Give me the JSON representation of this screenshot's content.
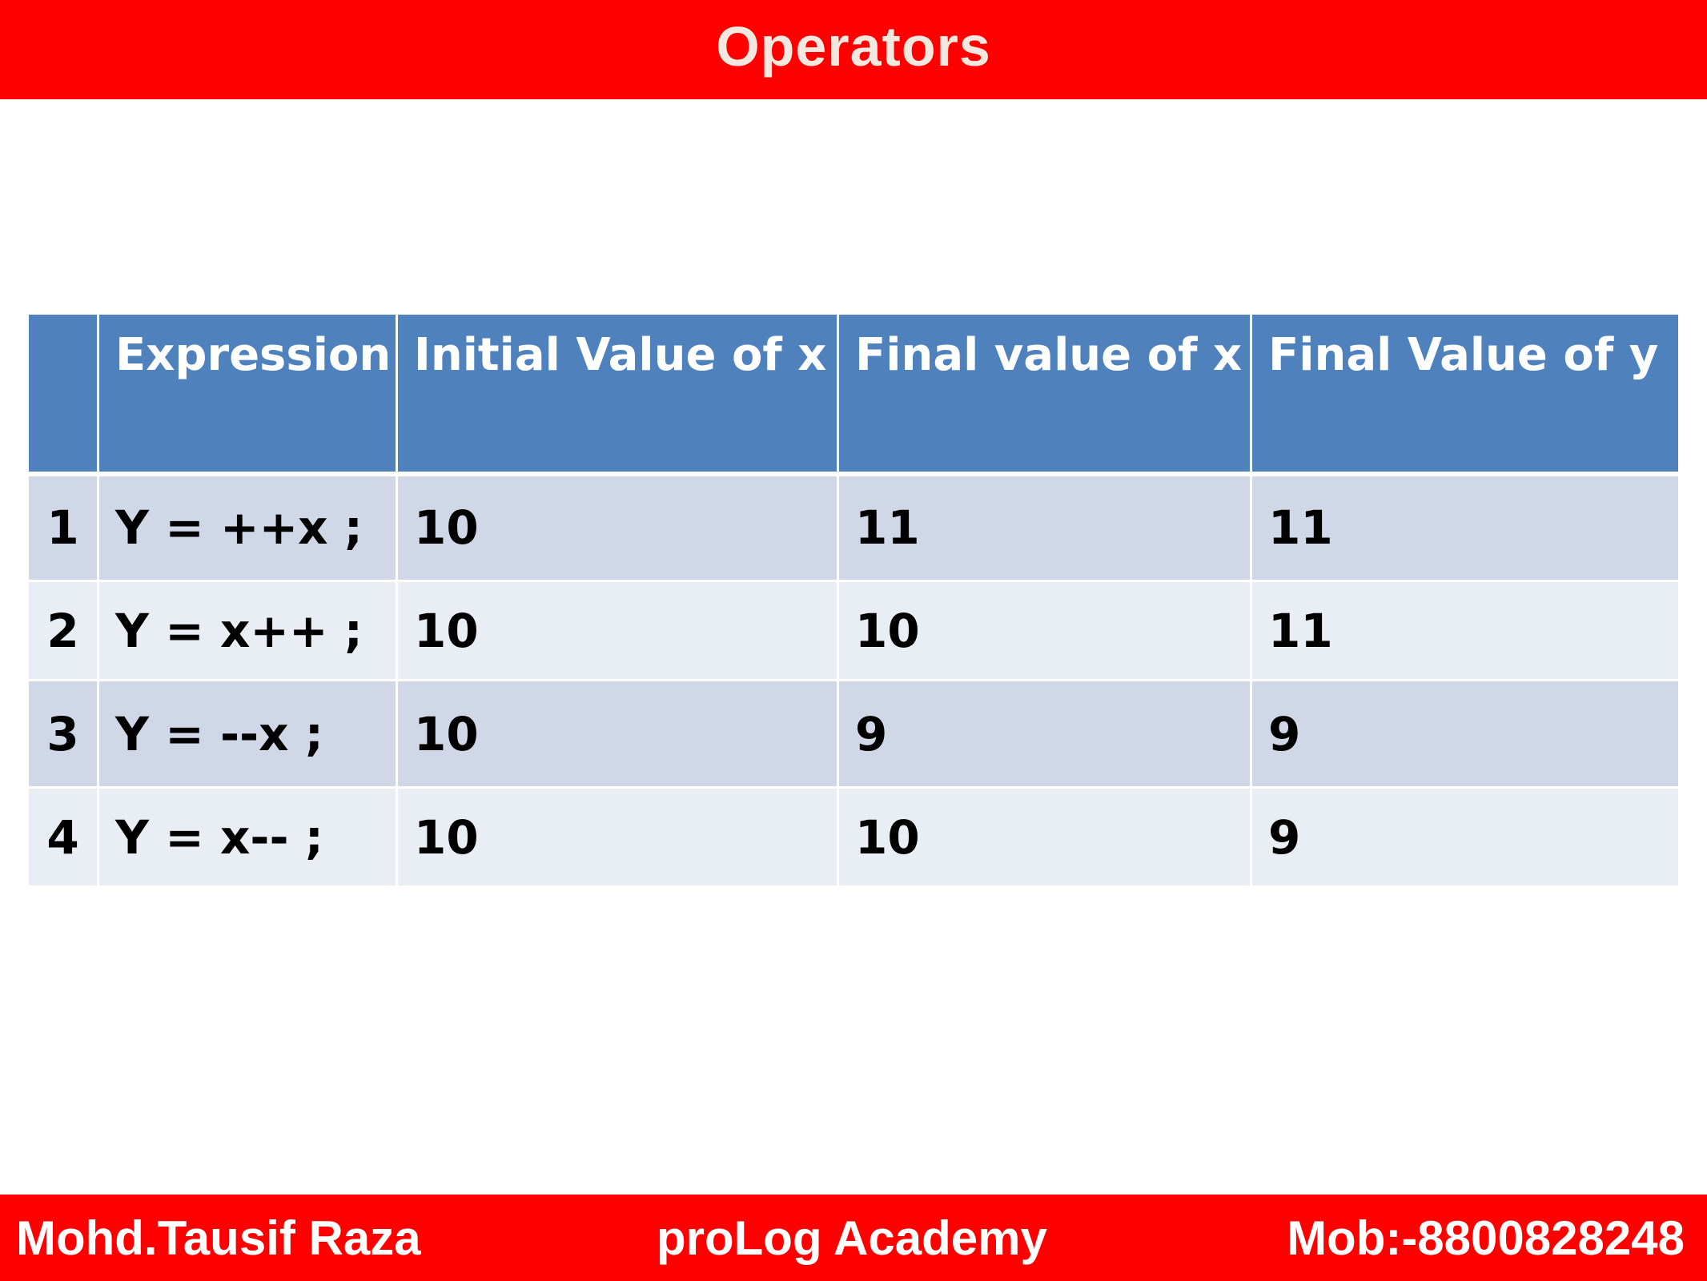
{
  "header": {
    "title": "Operators"
  },
  "table": {
    "columns": [
      "",
      "Expression",
      "Initial Value of x",
      "Final value of x",
      "Final Value of y"
    ],
    "rows": [
      {
        "num": "1",
        "expression": "Y = ++x ;",
        "initial_x": "10",
        "final_x": "11",
        "final_y": "11"
      },
      {
        "num": "2",
        "expression": "Y = x++ ;",
        "initial_x": "10",
        "final_x": "10",
        "final_y": "11"
      },
      {
        "num": "3",
        "expression": "Y = --x ;",
        "initial_x": "10",
        "final_x": "9",
        "final_y": "9"
      },
      {
        "num": "4",
        "expression": "Y = x-- ;",
        "initial_x": "10",
        "final_x": "10",
        "final_y": "9"
      }
    ]
  },
  "footer": {
    "author": "Mohd.Tausif Raza",
    "academy": "proLog Academy",
    "mobile": "Mob:-8800828248"
  },
  "colors": {
    "banner": "#ff0000",
    "table_header": "#4f81bd",
    "row_odd": "#d0d8e8",
    "row_even": "#e9edf4"
  }
}
